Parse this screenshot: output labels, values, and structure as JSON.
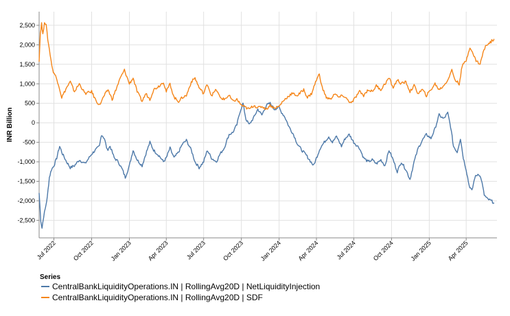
{
  "chart_data": {
    "type": "line",
    "ylabel": "INR Billion",
    "xlabel": "",
    "ylim": [
      -2950,
      2850
    ],
    "xlim": [
      "2022-05-26",
      "2025-06-15"
    ],
    "y_ticks": [
      {
        "value": 2500,
        "label": "2,500"
      },
      {
        "value": 2000,
        "label": "2,000"
      },
      {
        "value": 1500,
        "label": "1,500"
      },
      {
        "value": 1000,
        "label": "1,000"
      },
      {
        "value": 500,
        "label": "500"
      },
      {
        "value": 0,
        "label": "0"
      },
      {
        "value": -500,
        "label": "-500"
      },
      {
        "value": -1000,
        "label": "-1,000"
      },
      {
        "value": -1500,
        "label": "-1,500"
      },
      {
        "value": -2000,
        "label": "-2,000"
      },
      {
        "value": -2500,
        "label": "-2,500"
      }
    ],
    "x_ticks": [
      {
        "date": "2022-07-01",
        "label": "Jul 2022"
      },
      {
        "date": "2022-10-01",
        "label": "Oct 2022"
      },
      {
        "date": "2023-01-01",
        "label": "Jan 2023"
      },
      {
        "date": "2023-04-01",
        "label": "Apr 2023"
      },
      {
        "date": "2023-07-01",
        "label": "Jul 2023"
      },
      {
        "date": "2023-10-01",
        "label": "Oct 2023"
      },
      {
        "date": "2024-01-01",
        "label": "Jan 2024"
      },
      {
        "date": "2024-04-01",
        "label": "Apr 2024"
      },
      {
        "date": "2024-07-01",
        "label": "Jul 2024"
      },
      {
        "date": "2024-10-01",
        "label": "Oct 2024"
      },
      {
        "date": "2025-01-01",
        "label": "Jan 2025"
      },
      {
        "date": "2025-04-01",
        "label": "Apr 2025"
      }
    ],
    "grid": true,
    "legend": {
      "title": "Series",
      "placement": "bottom-left"
    },
    "series": [
      {
        "name": "CentralBankLiquidityOperations.IN | RollingAvg20D | NetLiquidityInjection",
        "color": "#4c78a8",
        "points": [
          [
            "2022-05-26",
            -1800
          ],
          [
            "2022-05-30",
            -2500
          ],
          [
            "2022-06-02",
            -2700
          ],
          [
            "2022-06-06",
            -2400
          ],
          [
            "2022-06-10",
            -2200
          ],
          [
            "2022-06-15",
            -1900
          ],
          [
            "2022-06-20",
            -1400
          ],
          [
            "2022-06-25",
            -1200
          ],
          [
            "2022-07-01",
            -1100
          ],
          [
            "2022-07-08",
            -900
          ],
          [
            "2022-07-15",
            -600
          ],
          [
            "2022-07-22",
            -800
          ],
          [
            "2022-08-01",
            -1000
          ],
          [
            "2022-08-10",
            -1150
          ],
          [
            "2022-08-20",
            -1100
          ],
          [
            "2022-09-01",
            -950
          ],
          [
            "2022-09-15",
            -1050
          ],
          [
            "2022-10-01",
            -800
          ],
          [
            "2022-10-10",
            -700
          ],
          [
            "2022-10-20",
            -600
          ],
          [
            "2022-10-25",
            -300
          ],
          [
            "2022-11-01",
            -400
          ],
          [
            "2022-11-08",
            -700
          ],
          [
            "2022-11-15",
            -600
          ],
          [
            "2022-11-25",
            -900
          ],
          [
            "2022-12-05",
            -1000
          ],
          [
            "2022-12-15",
            -1200
          ],
          [
            "2022-12-22",
            -1400
          ],
          [
            "2023-01-01",
            -1100
          ],
          [
            "2023-01-10",
            -700
          ],
          [
            "2023-01-20",
            -950
          ],
          [
            "2023-02-01",
            -1100
          ],
          [
            "2023-02-10",
            -800
          ],
          [
            "2023-02-20",
            -500
          ],
          [
            "2023-03-01",
            -700
          ],
          [
            "2023-03-15",
            -850
          ],
          [
            "2023-03-25",
            -1000
          ],
          [
            "2023-04-01",
            -900
          ],
          [
            "2023-04-10",
            -650
          ],
          [
            "2023-04-20",
            -900
          ],
          [
            "2023-05-01",
            -750
          ],
          [
            "2023-05-10",
            -550
          ],
          [
            "2023-05-20",
            -450
          ],
          [
            "2023-06-01",
            -700
          ],
          [
            "2023-06-10",
            -1000
          ],
          [
            "2023-06-20",
            -1150
          ],
          [
            "2023-07-01",
            -1000
          ],
          [
            "2023-07-10",
            -700
          ],
          [
            "2023-07-20",
            -900
          ],
          [
            "2023-08-01",
            -1000
          ],
          [
            "2023-08-10",
            -800
          ],
          [
            "2023-08-20",
            -650
          ],
          [
            "2023-09-01",
            -300
          ],
          [
            "2023-09-10",
            -250
          ],
          [
            "2023-09-20",
            -50
          ],
          [
            "2023-09-28",
            300
          ],
          [
            "2023-10-05",
            500
          ],
          [
            "2023-10-12",
            100
          ],
          [
            "2023-10-20",
            -50
          ],
          [
            "2023-11-01",
            150
          ],
          [
            "2023-11-10",
            350
          ],
          [
            "2023-11-20",
            200
          ],
          [
            "2023-12-01",
            450
          ],
          [
            "2023-12-10",
            500
          ],
          [
            "2023-12-20",
            350
          ],
          [
            "2024-01-01",
            400
          ],
          [
            "2024-01-05",
            300
          ],
          [
            "2024-01-15",
            150
          ],
          [
            "2024-01-25",
            -100
          ],
          [
            "2024-02-05",
            -300
          ],
          [
            "2024-02-15",
            -550
          ],
          [
            "2024-02-25",
            -700
          ],
          [
            "2024-03-05",
            -800
          ],
          [
            "2024-03-15",
            -950
          ],
          [
            "2024-03-25",
            -1100
          ],
          [
            "2024-04-01",
            -900
          ],
          [
            "2024-04-10",
            -650
          ],
          [
            "2024-04-20",
            -500
          ],
          [
            "2024-05-01",
            -350
          ],
          [
            "2024-05-10",
            -500
          ],
          [
            "2024-05-20",
            -350
          ],
          [
            "2024-06-01",
            -600
          ],
          [
            "2024-06-10",
            -400
          ],
          [
            "2024-06-20",
            -300
          ],
          [
            "2024-07-01",
            -500
          ],
          [
            "2024-07-15",
            -650
          ],
          [
            "2024-07-25",
            -900
          ],
          [
            "2024-08-05",
            -1000
          ],
          [
            "2024-08-15",
            -950
          ],
          [
            "2024-08-25",
            -1050
          ],
          [
            "2024-09-05",
            -950
          ],
          [
            "2024-09-15",
            -1100
          ],
          [
            "2024-09-25",
            -700
          ],
          [
            "2024-10-05",
            -950
          ],
          [
            "2024-10-15",
            -1250
          ],
          [
            "2024-10-25",
            -1000
          ],
          [
            "2024-11-05",
            -1200
          ],
          [
            "2024-11-15",
            -1450
          ],
          [
            "2024-11-25",
            -1000
          ],
          [
            "2024-12-05",
            -650
          ],
          [
            "2024-12-15",
            -450
          ],
          [
            "2024-12-25",
            -300
          ],
          [
            "2025-01-05",
            -400
          ],
          [
            "2025-01-15",
            -150
          ],
          [
            "2025-01-25",
            200
          ],
          [
            "2025-02-05",
            100
          ],
          [
            "2025-02-15",
            250
          ],
          [
            "2025-02-22",
            -100
          ],
          [
            "2025-03-01",
            -600
          ],
          [
            "2025-03-10",
            -750
          ],
          [
            "2025-03-18",
            -400
          ],
          [
            "2025-03-25",
            -900
          ],
          [
            "2025-04-01",
            -1200
          ],
          [
            "2025-04-08",
            -1600
          ],
          [
            "2025-04-15",
            -1750
          ],
          [
            "2025-04-22",
            -1400
          ],
          [
            "2025-05-01",
            -1300
          ],
          [
            "2025-05-08",
            -1450
          ],
          [
            "2025-05-15",
            -1850
          ],
          [
            "2025-05-22",
            -1950
          ],
          [
            "2025-06-01",
            -2000
          ],
          [
            "2025-06-08",
            -2050
          ]
        ]
      },
      {
        "name": "CentralBankLiquidityOperations.IN | RollingAvg20D | SDF",
        "color": "#f58518",
        "points": [
          [
            "2022-05-26",
            1600
          ],
          [
            "2022-05-29",
            2300
          ],
          [
            "2022-06-01",
            2550
          ],
          [
            "2022-06-04",
            2250
          ],
          [
            "2022-06-08",
            2600
          ],
          [
            "2022-06-12",
            2500
          ],
          [
            "2022-06-16",
            2150
          ],
          [
            "2022-06-22",
            1750
          ],
          [
            "2022-06-28",
            1350
          ],
          [
            "2022-07-05",
            1200
          ],
          [
            "2022-07-12",
            1000
          ],
          [
            "2022-07-20",
            650
          ],
          [
            "2022-08-01",
            900
          ],
          [
            "2022-08-10",
            1050
          ],
          [
            "2022-08-20",
            800
          ],
          [
            "2022-09-01",
            1000
          ],
          [
            "2022-09-15",
            750
          ],
          [
            "2022-10-01",
            800
          ],
          [
            "2022-10-10",
            600
          ],
          [
            "2022-10-20",
            450
          ],
          [
            "2022-11-01",
            700
          ],
          [
            "2022-11-10",
            850
          ],
          [
            "2022-11-20",
            600
          ],
          [
            "2022-12-01",
            900
          ],
          [
            "2022-12-10",
            1150
          ],
          [
            "2022-12-20",
            1350
          ],
          [
            "2023-01-01",
            1000
          ],
          [
            "2023-01-10",
            1150
          ],
          [
            "2023-01-20",
            800
          ],
          [
            "2023-02-01",
            550
          ],
          [
            "2023-02-10",
            750
          ],
          [
            "2023-02-20",
            600
          ],
          [
            "2023-03-01",
            850
          ],
          [
            "2023-03-15",
            950
          ],
          [
            "2023-03-25",
            1050
          ],
          [
            "2023-04-01",
            800
          ],
          [
            "2023-04-10",
            1000
          ],
          [
            "2023-04-20",
            650
          ],
          [
            "2023-05-01",
            550
          ],
          [
            "2023-05-10",
            650
          ],
          [
            "2023-05-20",
            700
          ],
          [
            "2023-06-01",
            1050
          ],
          [
            "2023-06-10",
            1150
          ],
          [
            "2023-06-20",
            900
          ],
          [
            "2023-07-01",
            750
          ],
          [
            "2023-07-10",
            1000
          ],
          [
            "2023-07-20",
            700
          ],
          [
            "2023-08-01",
            850
          ],
          [
            "2023-08-10",
            650
          ],
          [
            "2023-08-20",
            600
          ],
          [
            "2023-09-01",
            700
          ],
          [
            "2023-09-10",
            550
          ],
          [
            "2023-09-20",
            600
          ],
          [
            "2023-10-01",
            450
          ],
          [
            "2023-10-10",
            400
          ],
          [
            "2023-10-20",
            350
          ],
          [
            "2023-11-01",
            450
          ],
          [
            "2023-11-10",
            380
          ],
          [
            "2023-11-20",
            420
          ],
          [
            "2023-12-01",
            350
          ],
          [
            "2023-12-10",
            450
          ],
          [
            "2023-12-20",
            380
          ],
          [
            "2024-01-01",
            420
          ],
          [
            "2024-01-10",
            550
          ],
          [
            "2024-01-20",
            650
          ],
          [
            "2024-02-01",
            750
          ],
          [
            "2024-02-15",
            700
          ],
          [
            "2024-03-01",
            850
          ],
          [
            "2024-03-10",
            650
          ],
          [
            "2024-03-20",
            750
          ],
          [
            "2024-04-01",
            1100
          ],
          [
            "2024-04-08",
            1250
          ],
          [
            "2024-04-15",
            900
          ],
          [
            "2024-04-25",
            650
          ],
          [
            "2024-05-05",
            600
          ],
          [
            "2024-05-15",
            750
          ],
          [
            "2024-05-25",
            650
          ],
          [
            "2024-06-05",
            700
          ],
          [
            "2024-06-15",
            600
          ],
          [
            "2024-06-25",
            500
          ],
          [
            "2024-07-05",
            650
          ],
          [
            "2024-07-15",
            800
          ],
          [
            "2024-07-25",
            700
          ],
          [
            "2024-08-05",
            850
          ],
          [
            "2024-08-15",
            800
          ],
          [
            "2024-08-25",
            950
          ],
          [
            "2024-09-05",
            850
          ],
          [
            "2024-09-15",
            1000
          ],
          [
            "2024-09-25",
            1150
          ],
          [
            "2024-10-05",
            900
          ],
          [
            "2024-10-15",
            1100
          ],
          [
            "2024-10-25",
            1000
          ],
          [
            "2024-11-05",
            1050
          ],
          [
            "2024-11-15",
            800
          ],
          [
            "2024-11-25",
            950
          ],
          [
            "2024-12-05",
            750
          ],
          [
            "2024-12-15",
            850
          ],
          [
            "2024-12-25",
            700
          ],
          [
            "2025-01-05",
            850
          ],
          [
            "2025-01-15",
            1000
          ],
          [
            "2025-01-25",
            850
          ],
          [
            "2025-02-05",
            950
          ],
          [
            "2025-02-15",
            1100
          ],
          [
            "2025-02-25",
            1350
          ],
          [
            "2025-03-05",
            1100
          ],
          [
            "2025-03-15",
            1000
          ],
          [
            "2025-03-22",
            1450
          ],
          [
            "2025-04-01",
            1600
          ],
          [
            "2025-04-10",
            1950
          ],
          [
            "2025-04-18",
            1750
          ],
          [
            "2025-04-25",
            1600
          ],
          [
            "2025-05-05",
            1500
          ],
          [
            "2025-05-12",
            1800
          ],
          [
            "2025-05-20",
            2000
          ],
          [
            "2025-05-28",
            2050
          ],
          [
            "2025-06-08",
            2150
          ]
        ]
      }
    ]
  }
}
